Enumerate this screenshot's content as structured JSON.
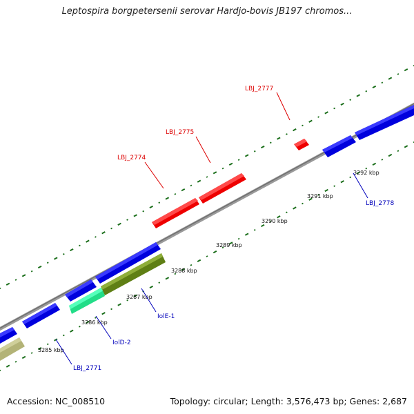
{
  "title": "Leptospira borgpetersenii serovar Hardjo-bovis JB197 chromos...",
  "footer": {
    "accession": "Accession: NC_008510",
    "topology": "Topology: circular; Length: 3,576,473 bp; Genes: 2,687"
  },
  "colors": {
    "backbone": "#8c8c8c",
    "ticks": "#1a6e1a",
    "forward_gene": "#ee0000",
    "reverse_gene": "#0000dd",
    "rna_gene": "#33ee99",
    "other_gene": "#6b8a1e",
    "pale_gene": "#b8b880",
    "forward_label": "#dd0000",
    "reverse_label": "#0000bb"
  },
  "scale_labels": [
    "3285 kbp",
    "3286 kbp",
    "3287 kbp",
    "3288 kbp",
    "3289 kbp",
    "3290 kbp",
    "3291 kbp",
    "3292 kbp"
  ],
  "gene_labels": {
    "LBJ_2774": "LBJ_2774",
    "LBJ_2775": "LBJ_2775",
    "LBJ_2777": "LBJ_2777",
    "LBJ_2778": "LBJ_2778",
    "IolE-1": "IolE-1",
    "IolD-2": "IolD-2",
    "LBJ_2771": "LBJ_2771"
  }
}
